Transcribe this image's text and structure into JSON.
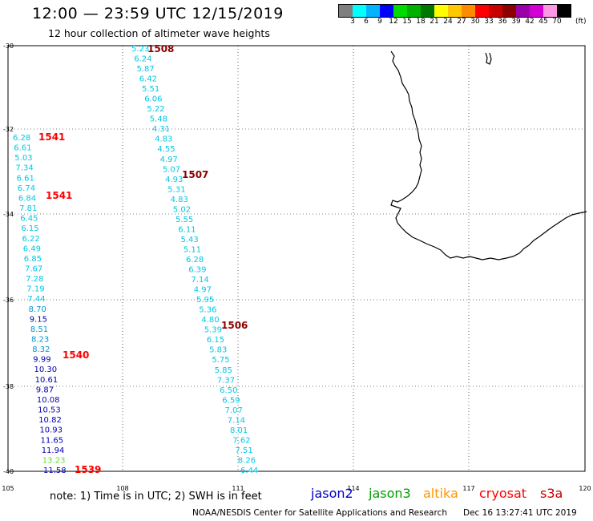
{
  "title": "12:00 — 23:59 UTC 12/15/2019",
  "subtitle": "12 hour collection of altimeter wave heights",
  "colorbar": {
    "colors": [
      "#7f7f7f",
      "#00ffff",
      "#00b4ff",
      "#0000ff",
      "#00dc00",
      "#00b000",
      "#007800",
      "#ffff00",
      "#ffc800",
      "#ff8c00",
      "#ff0000",
      "#c80000",
      "#8c0000",
      "#9b00a8",
      "#d200d2",
      "#ff96e6",
      "#000000"
    ],
    "labels": [
      "3",
      "6",
      "9",
      "12",
      "15",
      "18",
      "21",
      "24",
      "27",
      "30",
      "33",
      "36",
      "39",
      "42",
      "45",
      "70"
    ],
    "unit": "(ft)"
  },
  "axes": {
    "lat_labels": [
      "-30",
      "-32",
      "-34",
      "-36",
      "-38",
      "-40"
    ],
    "lon_labels": [
      "105",
      "108",
      "111",
      "114",
      "117",
      "120"
    ]
  },
  "tracks": [
    {
      "pass": "1508",
      "pass_color": "#8c0000",
      "values": [
        "5.23",
        "6.24",
        "5.87",
        "6.42",
        "5.51",
        "6.06",
        "5.22",
        "5.48",
        "4.31",
        "4.83",
        "4.55",
        "4.97",
        "5.07",
        "4.93",
        "5.31",
        "4.83",
        "5.02",
        "5.55",
        "6.11",
        "5.43",
        "5.11",
        "6.28",
        "6.39",
        "7.14",
        "4.97",
        "5.95",
        "5.36",
        "4.80",
        "5.39",
        "6.15",
        "5.83",
        "5.75",
        "5.85",
        "7.37",
        "6.50",
        "6.59",
        "7.07",
        "7.14",
        "8.01",
        "7.62",
        "7.51",
        "8.26",
        "6.44"
      ],
      "colors": [
        "c",
        "c",
        "c",
        "c",
        "c",
        "c",
        "c",
        "c",
        "c",
        "c",
        "c",
        "c",
        "c",
        "c",
        "c",
        "c",
        "c",
        "c",
        "c",
        "c",
        "c",
        "c",
        "c",
        "c",
        "c",
        "c",
        "c",
        "c",
        "c",
        "c",
        "c",
        "c",
        "c",
        "c",
        "c",
        "c",
        "c",
        "c",
        "c",
        "c",
        "c",
        "c",
        "c"
      ]
    },
    {
      "pass": "1541",
      "pass_color": "#ff0000",
      "values": [
        "6.28",
        "6.61",
        "5.03",
        "7.34",
        "6.61",
        "6.74",
        "6.84",
        "7.81",
        "6.45",
        "6.15",
        "6.22",
        "6.49",
        "6.85",
        "7.67",
        "7.28",
        "7.19",
        "7.44",
        "8.70",
        "9.15",
        "8.51",
        "8.23",
        "8.32",
        "9.99",
        "10.30",
        "10.61",
        "9.87",
        "10.08",
        "10.53",
        "10.82",
        "10.93",
        "11.65",
        "11.94",
        "13.23",
        "11.58"
      ],
      "colors": [
        "c",
        "c",
        "c",
        "c",
        "c",
        "c",
        "c",
        "c",
        "c",
        "c",
        "c",
        "c",
        "c",
        "c",
        "c",
        "c",
        "c",
        "b",
        "d",
        "b",
        "b",
        "b",
        "d",
        "d",
        "d",
        "d",
        "d",
        "d",
        "d",
        "d",
        "d",
        "d",
        "g",
        "d"
      ]
    }
  ],
  "pass_labels": [
    "1508",
    "1541",
    "1507",
    "1541",
    "1506",
    "1540",
    "1539"
  ],
  "note": "note:  1) Time is in UTC;  2) SWH is in feet",
  "satellites": [
    {
      "name": "jason2",
      "color": "#0000cc"
    },
    {
      "name": "jason3",
      "color": "#00a000"
    },
    {
      "name": "altika",
      "color": "#ff9600"
    },
    {
      "name": "cryosat",
      "color": "#ff0000"
    },
    {
      "name": "s3a",
      "color": "#c80000"
    }
  ],
  "credit": "NOAA/NESDIS Center for Satellite Applications and Research",
  "timestamp": "Dec 16 13:27:41 UTC 2019"
}
